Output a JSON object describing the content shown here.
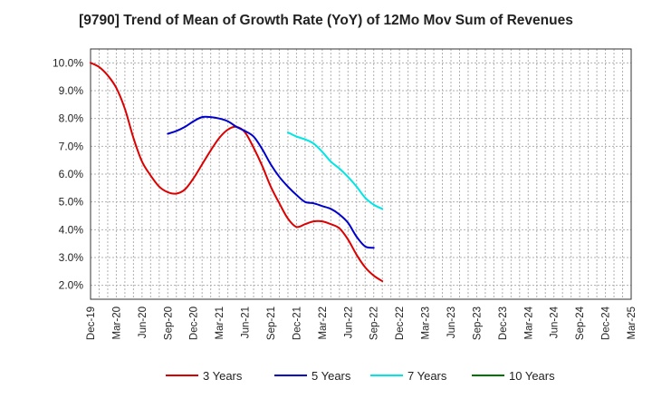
{
  "chart_data": {
    "type": "line",
    "title": "[9790]  Trend of Mean of Growth Rate (YoY) of 12Mo Mov Sum of Revenues",
    "xlabel": "",
    "ylabel": "",
    "x_ticks": [
      "Dec-19",
      "Mar-20",
      "Jun-20",
      "Sep-20",
      "Dec-20",
      "Mar-21",
      "Jun-21",
      "Sep-21",
      "Dec-21",
      "Mar-22",
      "Jun-22",
      "Sep-22",
      "Dec-22",
      "Mar-23",
      "Jun-23",
      "Sep-23",
      "Dec-23",
      "Mar-24",
      "Jun-24",
      "Sep-24",
      "Dec-24",
      "Mar-25"
    ],
    "y_ticks": [
      "2.0%",
      "3.0%",
      "4.0%",
      "5.0%",
      "6.0%",
      "7.0%",
      "8.0%",
      "9.0%",
      "10.0%"
    ],
    "ylim": [
      1.5,
      10.5
    ],
    "grid": true,
    "legend_position": "bottom",
    "series": [
      {
        "name": "3 Years",
        "color": "#dd0000",
        "values": [
          10.0,
          9.85,
          9.55,
          9.1,
          8.35,
          7.3,
          6.45,
          5.95,
          5.55,
          5.35,
          5.3,
          5.45,
          5.85,
          6.35,
          6.85,
          7.3,
          7.6,
          7.7,
          7.5,
          6.95,
          6.3,
          5.55,
          4.95,
          4.4,
          4.1,
          4.2,
          4.3,
          4.3,
          4.2,
          4.05,
          3.65,
          3.1,
          2.65,
          2.35,
          2.15
        ],
        "start_index": 0
      },
      {
        "name": "5 Years",
        "color": "#0000cc",
        "values": [
          7.45,
          7.55,
          7.7,
          7.9,
          8.05,
          8.05,
          8.0,
          7.9,
          7.7,
          7.55,
          7.35,
          6.9,
          6.35,
          5.9,
          5.55,
          5.25,
          5.0,
          4.95,
          4.85,
          4.75,
          4.55,
          4.25,
          3.75,
          3.4,
          3.35
        ],
        "start_index": 9
      },
      {
        "name": "7 Years",
        "color": "#00e5e5",
        "values": [
          7.5,
          7.35,
          7.25,
          7.1,
          6.8,
          6.45,
          6.2,
          5.9,
          5.55,
          5.15,
          4.9,
          4.75
        ],
        "start_index": 23
      },
      {
        "name": "10 Years",
        "color": "#007700",
        "values": [],
        "start_index": 0
      }
    ]
  }
}
